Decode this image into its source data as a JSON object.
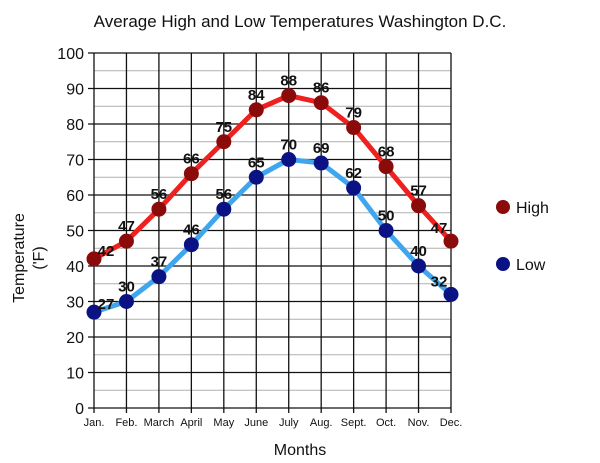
{
  "chart_data": {
    "type": "line",
    "title": "Average High and Low Temperatures Washington D.C.",
    "xlabel": "Months",
    "ylabel": [
      "Temperature",
      "('F)"
    ],
    "categories": [
      "Jan.",
      "Feb.",
      "March",
      "April",
      "May",
      "June",
      "July",
      "Aug.",
      "Sept.",
      "Oct.",
      "Nov.",
      "Dec."
    ],
    "ylim": [
      0,
      100
    ],
    "yticks": [
      0,
      10,
      20,
      30,
      40,
      50,
      60,
      70,
      80,
      90,
      100
    ],
    "minor_step": 5,
    "grid": true,
    "legend_position": "right",
    "series": [
      {
        "name": "High",
        "values": [
          42,
          47,
          56,
          66,
          75,
          84,
          88,
          86,
          79,
          68,
          57,
          47
        ],
        "line_color": "#ee2020",
        "marker_color": "#8b0a0a"
      },
      {
        "name": "Low",
        "values": [
          27,
          30,
          37,
          46,
          56,
          65,
          70,
          69,
          62,
          50,
          40,
          32
        ],
        "line_color": "#3fa6ee",
        "marker_color": "#0a1284"
      }
    ]
  }
}
